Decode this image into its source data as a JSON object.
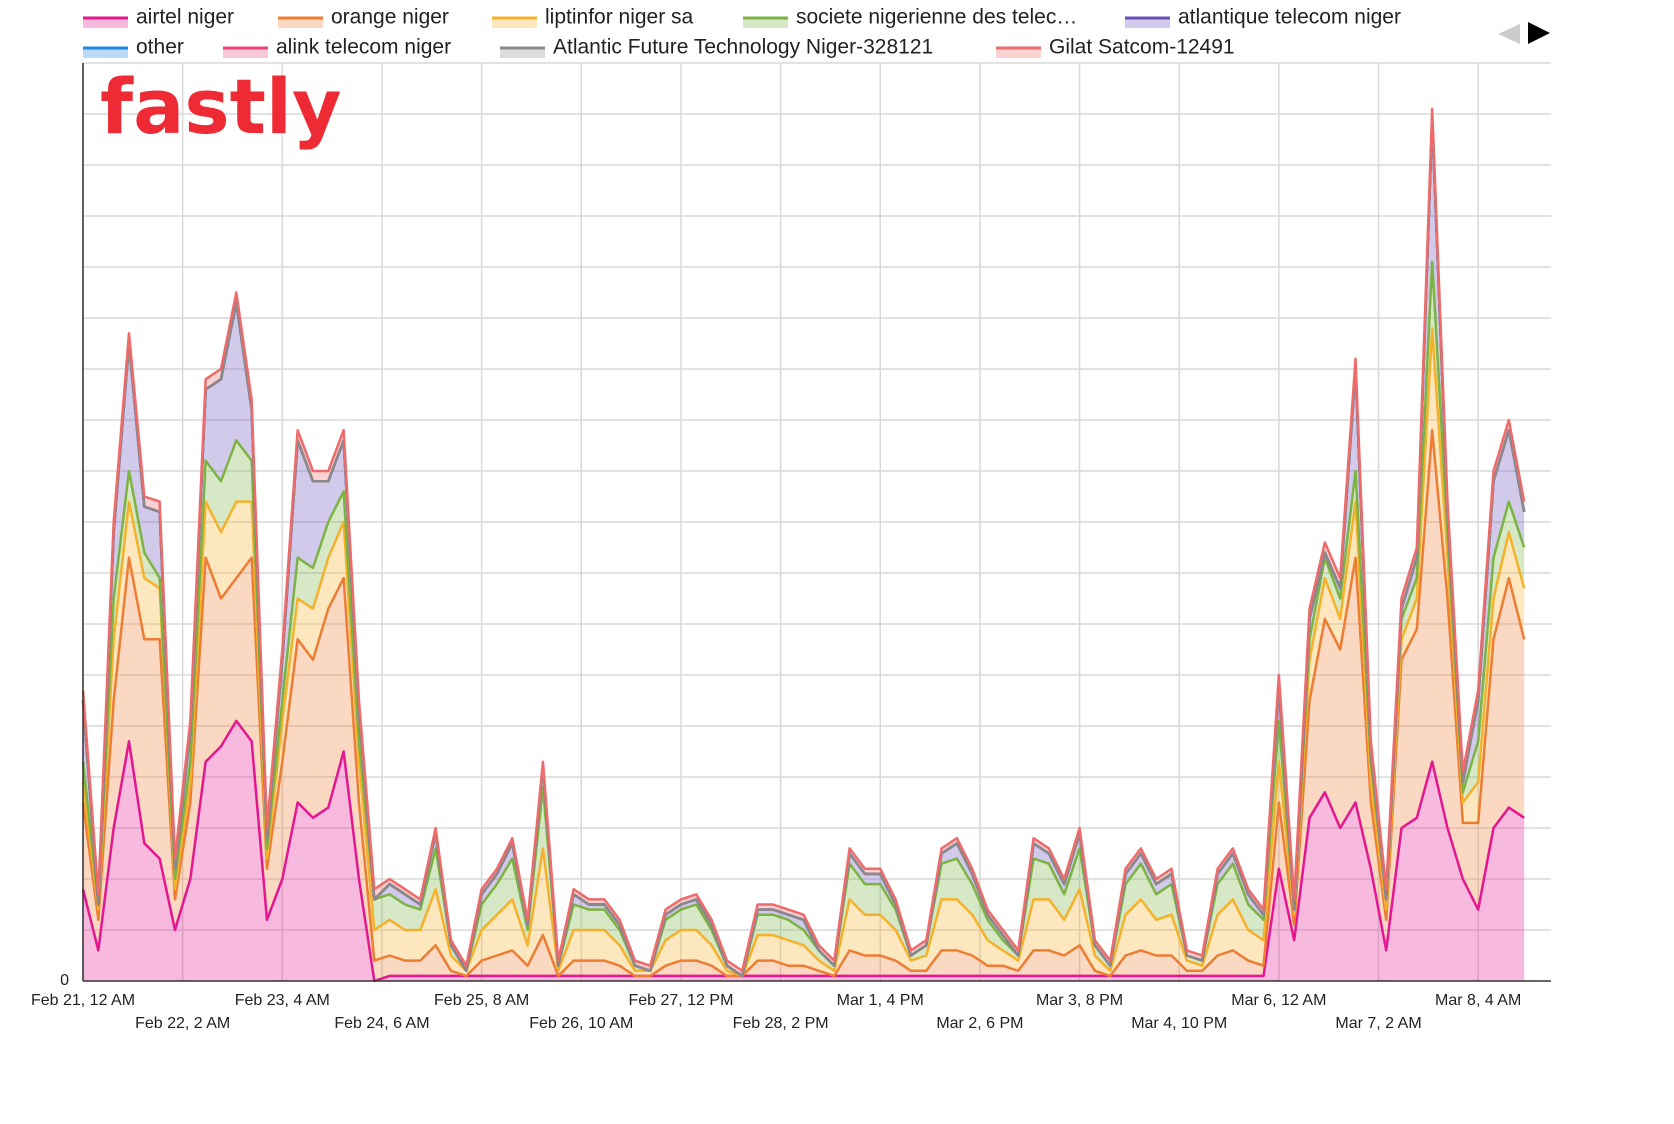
{
  "chart_data": {
    "type": "stacked_area",
    "logo": "fastly",
    "x": [
      0,
      4,
      8,
      12,
      16,
      20,
      24,
      28,
      32,
      36,
      40,
      44,
      48,
      52,
      56,
      60,
      64,
      68,
      72,
      76,
      80,
      84,
      88,
      92,
      96,
      100,
      104,
      108,
      112,
      116,
      120,
      124,
      128,
      132,
      136,
      140,
      144,
      148,
      152,
      156,
      160,
      164,
      168,
      172,
      176,
      180,
      184,
      188,
      192,
      196,
      200,
      204,
      208,
      212,
      216,
      220,
      224,
      228,
      232,
      236,
      240,
      244,
      248,
      252,
      256,
      260,
      264,
      268,
      272,
      276,
      280,
      284,
      288,
      292,
      296,
      300,
      304,
      308,
      312,
      316,
      320,
      324,
      328,
      332,
      336,
      340,
      344,
      348,
      352,
      356,
      360,
      364,
      368,
      372,
      376
    ],
    "xlim": [
      0,
      383
    ],
    "xticks": [
      {
        "value": 0,
        "label": "Feb 21, 12 AM"
      },
      {
        "value": 26,
        "label": "Feb 22, 2 AM"
      },
      {
        "value": 52,
        "label": "Feb 23, 4 AM"
      },
      {
        "value": 78,
        "label": "Feb 24, 6 AM"
      },
      {
        "value": 104,
        "label": "Feb 25, 8 AM"
      },
      {
        "value": 130,
        "label": "Feb 26, 10 AM"
      },
      {
        "value": 156,
        "label": "Feb 27, 12 PM"
      },
      {
        "value": 182,
        "label": "Feb 28, 2 PM"
      },
      {
        "value": 208,
        "label": "Mar 1, 4 PM"
      },
      {
        "value": 234,
        "label": "Mar 2, 6 PM"
      },
      {
        "value": 260,
        "label": "Mar 3, 8 PM"
      },
      {
        "value": 286,
        "label": "Mar 4, 10 PM"
      },
      {
        "value": 312,
        "label": "Mar 6, 12 AM"
      },
      {
        "value": 338,
        "label": "Mar 7, 2 AM"
      },
      {
        "value": 364,
        "label": "Mar 8, 4 AM"
      }
    ],
    "ylim": [
      0,
      18
    ],
    "yticks": [
      0
    ],
    "ygrid": [
      1,
      2,
      3,
      4,
      5,
      6,
      7,
      8,
      9,
      10,
      11,
      12,
      13,
      14,
      15,
      16,
      17,
      18
    ],
    "grid": true,
    "legend": "top",
    "series": [
      {
        "name": "airtel niger",
        "color": "#e3178f",
        "values": [
          1.8,
          0.6,
          3.0,
          4.7,
          2.7,
          2.4,
          1.0,
          2.0,
          4.3,
          4.6,
          5.1,
          4.7,
          1.2,
          2.0,
          3.5,
          3.2,
          3.4,
          4.5,
          2.0,
          0,
          0.1,
          0.1,
          0.1,
          0.1,
          0.1,
          0.1,
          0.1,
          0.1,
          0.1,
          0.1,
          0.1,
          0.1,
          0.1,
          0.1,
          0.1,
          0.1,
          0.1,
          0.1,
          0.1,
          0.1,
          0.1,
          0.1,
          0.1,
          0.1,
          0.1,
          0.1,
          0.1,
          0.1,
          0.1,
          0.1,
          0.1,
          0.1,
          0.1,
          0.1,
          0.1,
          0.1,
          0.1,
          0.1,
          0.1,
          0.1,
          0.1,
          0.1,
          0.1,
          0.1,
          0.1,
          0.1,
          0.1,
          0.1,
          0.1,
          0.1,
          0.1,
          0.1,
          0.1,
          0.1,
          0.1,
          0.1,
          0.1,
          0.1,
          2.2,
          0.8,
          3.2,
          3.7,
          3.0,
          3.5,
          2.2,
          0.6,
          3.0,
          3.2,
          4.3,
          3.0,
          2.0,
          1.4,
          3.0,
          3.4,
          3.2
        ]
      },
      {
        "name": "orange niger",
        "color": "#ee7d34",
        "values": [
          1.7,
          0.6,
          2.5,
          3.6,
          4.0,
          4.3,
          0.6,
          1.5,
          4.0,
          2.9,
          2.8,
          3.6,
          1.0,
          2.3,
          3.2,
          3.1,
          3.9,
          3.4,
          1.5,
          0.4,
          0.4,
          0.3,
          0.3,
          0.6,
          0.1,
          0,
          0.3,
          0.4,
          0.5,
          0.2,
          0.8,
          0,
          0.3,
          0.3,
          0.3,
          0.2,
          0,
          0,
          0.2,
          0.3,
          0.3,
          0.2,
          0,
          0,
          0.3,
          0.3,
          0.2,
          0.2,
          0.1,
          0,
          0.5,
          0.4,
          0.4,
          0.3,
          0.1,
          0.1,
          0.5,
          0.5,
          0.4,
          0.2,
          0.2,
          0.1,
          0.5,
          0.5,
          0.4,
          0.6,
          0.1,
          0,
          0.4,
          0.5,
          0.4,
          0.4,
          0.1,
          0.1,
          0.4,
          0.5,
          0.3,
          0.2,
          1.3,
          0.3,
          2.3,
          3.4,
          3.5,
          4.8,
          1.3,
          0.6,
          3.3,
          3.7,
          6.5,
          4.5,
          1.1,
          1.7,
          3.7,
          4.5,
          3.5
        ]
      },
      {
        "name": "liptinfor niger sa",
        "color": "#f6b12b",
        "values": [
          0.4,
          0.2,
          1.2,
          1.1,
          1.2,
          1.0,
          0.2,
          0.4,
          1.1,
          1.3,
          1.5,
          1.1,
          0.2,
          0.8,
          0.8,
          1.0,
          1.0,
          1.1,
          0.8,
          0.6,
          0.7,
          0.6,
          0.6,
          1.1,
          0.3,
          0.1,
          0.6,
          0.8,
          1.0,
          0.4,
          1.7,
          0.1,
          0.6,
          0.6,
          0.6,
          0.4,
          0.1,
          0.1,
          0.5,
          0.6,
          0.6,
          0.4,
          0.1,
          0,
          0.5,
          0.5,
          0.5,
          0.4,
          0.2,
          0.1,
          1.0,
          0.8,
          0.8,
          0.6,
          0.2,
          0.3,
          1.0,
          1.0,
          0.8,
          0.5,
          0.3,
          0.2,
          1.0,
          1.0,
          0.7,
          1.1,
          0.3,
          0.1,
          0.8,
          1.0,
          0.7,
          0.8,
          0.2,
          0.1,
          0.8,
          1.0,
          0.6,
          0.5,
          0.8,
          0.2,
          0.8,
          0.8,
          0.6,
          1.1,
          0.4,
          0.2,
          0.4,
          0.6,
          2.0,
          0.8,
          0.4,
          0.8,
          0.8,
          0.9,
          1.0
        ]
      },
      {
        "name": "societe nigerienne des telec…",
        "color": "#7cb342",
        "values": [
          0.4,
          0.1,
          0.8,
          0.6,
          0.5,
          0.2,
          0.2,
          0.4,
          0.8,
          1.0,
          1.2,
          0.8,
          0.2,
          0.4,
          0.8,
          0.8,
          0.7,
          0.6,
          0.4,
          0.6,
          0.5,
          0.5,
          0.4,
          0.8,
          0.2,
          0,
          0.5,
          0.6,
          0.8,
          0.3,
          1.2,
          0.1,
          0.5,
          0.4,
          0.4,
          0.3,
          0.1,
          0,
          0.4,
          0.4,
          0.5,
          0.3,
          0.1,
          0,
          0.4,
          0.4,
          0.4,
          0.3,
          0.2,
          0.1,
          0.7,
          0.6,
          0.6,
          0.4,
          0.1,
          0.2,
          0.7,
          0.8,
          0.6,
          0.4,
          0.2,
          0.1,
          0.8,
          0.7,
          0.5,
          0.8,
          0.2,
          0.1,
          0.6,
          0.7,
          0.5,
          0.6,
          0.1,
          0.1,
          0.6,
          0.7,
          0.5,
          0.4,
          0.8,
          0.1,
          0.4,
          0.4,
          0.4,
          0.6,
          0.4,
          0.2,
          0.4,
          0.4,
          1.3,
          0.5,
          0.2,
          0.8,
          0.8,
          0.6,
          0.8
        ]
      },
      {
        "name": "atlantique telecom niger",
        "color": "#6750b8",
        "values": [
          1.2,
          0,
          1.3,
          2.5,
          0.9,
          1.3,
          0.2,
          0.6,
          1.4,
          2.0,
          2.7,
          1.0,
          0.2,
          0.8,
          2.3,
          1.7,
          0.8,
          1.0,
          0.6,
          0,
          0.2,
          0.2,
          0.1,
          0.3,
          0,
          0,
          0.2,
          0.2,
          0.3,
          0.1,
          0.4,
          0,
          0.2,
          0.1,
          0.1,
          0.1,
          0,
          0,
          0.1,
          0.1,
          0.1,
          0.1,
          0,
          0,
          0.1,
          0.1,
          0.1,
          0.2,
          0,
          0,
          0.2,
          0.2,
          0.2,
          0.1,
          0,
          0,
          0.2,
          0.3,
          0.2,
          0.1,
          0.1,
          0,
          0.3,
          0.2,
          0.2,
          0.3,
          0,
          0,
          0.2,
          0.2,
          0.2,
          0.2,
          0,
          0,
          0.2,
          0.2,
          0.2,
          0.1,
          0.7,
          0,
          0.4,
          0.1,
          0.2,
          2.0,
          0.2,
          0,
          0.2,
          0.4,
          2.8,
          0.4,
          0.2,
          0.8,
          1.5,
          1.4,
          0.7
        ]
      },
      {
        "name": "other",
        "color": "#1e88e5",
        "values": [
          0,
          0,
          0,
          0,
          0,
          0,
          0,
          0,
          0,
          0,
          0,
          0,
          0,
          0,
          0,
          0,
          0,
          0,
          0,
          0,
          0,
          0,
          0,
          0,
          0,
          0,
          0,
          0,
          0,
          0,
          0,
          0,
          0,
          0,
          0,
          0,
          0,
          0,
          0,
          0,
          0,
          0,
          0,
          0,
          0,
          0,
          0,
          0,
          0,
          0,
          0,
          0,
          0,
          0,
          0,
          0,
          0,
          0,
          0,
          0,
          0,
          0,
          0,
          0,
          0,
          0,
          0,
          0,
          0,
          0,
          0,
          0,
          0,
          0,
          0,
          0,
          0,
          0,
          0,
          0,
          0,
          0,
          0,
          0,
          0,
          0,
          0,
          0,
          0,
          0,
          0,
          0,
          0,
          0,
          0
        ]
      },
      {
        "name": "alink telecom niger",
        "color": "#e8457f",
        "values": [
          0,
          0,
          0,
          0,
          0,
          0,
          0,
          0,
          0,
          0,
          0,
          0,
          0,
          0,
          0,
          0,
          0,
          0,
          0,
          0,
          0,
          0,
          0,
          0,
          0,
          0,
          0,
          0,
          0,
          0,
          0,
          0,
          0,
          0,
          0,
          0,
          0,
          0,
          0,
          0,
          0,
          0,
          0,
          0,
          0,
          0,
          0,
          0,
          0,
          0,
          0,
          0,
          0,
          0,
          0,
          0,
          0,
          0,
          0,
          0,
          0,
          0,
          0,
          0,
          0,
          0,
          0,
          0,
          0,
          0,
          0,
          0,
          0,
          0,
          0,
          0,
          0,
          0,
          0,
          0,
          0,
          0,
          0,
          0,
          0,
          0,
          0,
          0,
          0,
          0,
          0,
          0,
          0,
          0,
          0
        ]
      },
      {
        "name": "Atlantic Future Technology Niger-328121",
        "color": "#8a8a8a",
        "values": [
          0,
          0,
          0,
          0,
          0,
          0,
          0,
          0,
          0,
          0,
          0,
          0,
          0,
          0,
          0,
          0,
          0,
          0,
          0,
          0,
          0,
          0,
          0,
          0,
          0,
          0,
          0,
          0,
          0,
          0,
          0,
          0,
          0,
          0,
          0,
          0,
          0,
          0,
          0,
          0,
          0,
          0,
          0,
          0,
          0,
          0,
          0,
          0,
          0,
          0,
          0,
          0,
          0,
          0,
          0,
          0,
          0,
          0,
          0,
          0,
          0,
          0,
          0,
          0,
          0,
          0,
          0,
          0,
          0,
          0,
          0,
          0,
          0,
          0,
          0,
          0,
          0,
          0,
          0,
          0,
          0,
          0,
          0,
          0,
          0,
          0,
          0,
          0,
          0,
          0,
          0,
          0,
          0,
          0,
          0
        ]
      },
      {
        "name": "Gilat Satcom-12491",
        "color": "#ee6b6b",
        "values": [
          0.2,
          0.2,
          0.2,
          0.2,
          0.2,
          0.2,
          0.2,
          0.2,
          0.2,
          0.2,
          0.2,
          0.2,
          0.2,
          0.2,
          0.2,
          0.2,
          0.2,
          0.2,
          0.2,
          0.2,
          0.1,
          0.1,
          0.1,
          0.1,
          0.1,
          0.1,
          0.1,
          0.1,
          0.1,
          0.1,
          0.1,
          0.1,
          0.1,
          0.1,
          0.1,
          0.1,
          0.1,
          0.1,
          0.1,
          0.1,
          0.1,
          0.1,
          0.1,
          0.1,
          0.1,
          0.1,
          0.1,
          0.1,
          0.1,
          0.1,
          0.1,
          0.1,
          0.1,
          0.1,
          0.1,
          0.1,
          0.1,
          0.1,
          0.1,
          0.1,
          0.1,
          0.1,
          0.1,
          0.1,
          0.1,
          0.1,
          0.1,
          0.1,
          0.1,
          0.1,
          0.1,
          0.1,
          0.1,
          0.1,
          0.1,
          0.1,
          0.1,
          0.1,
          0.2,
          0.2,
          0.2,
          0.2,
          0.2,
          0.2,
          0.2,
          0.2,
          0.2,
          0.2,
          0.2,
          0.2,
          0.2,
          0.2,
          0.2,
          0.2,
          0.2
        ]
      }
    ]
  }
}
